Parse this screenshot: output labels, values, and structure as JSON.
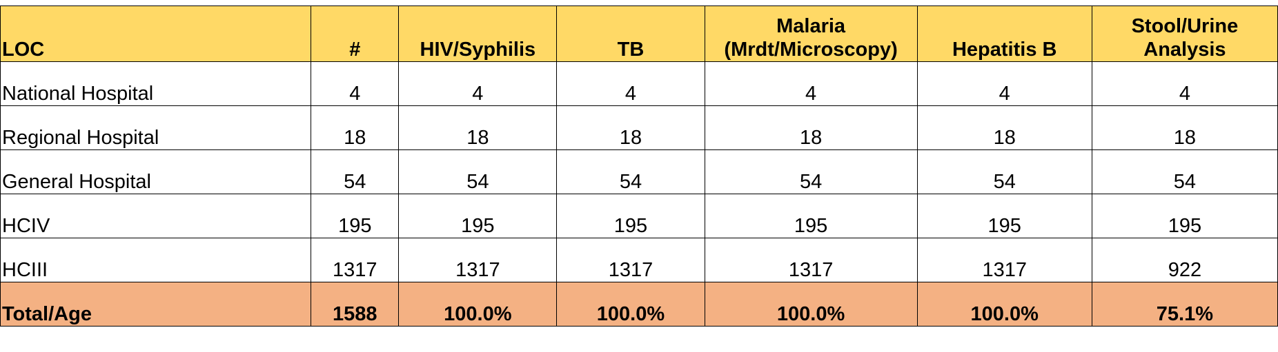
{
  "colors": {
    "header_bg": "#FFD966",
    "total_bg": "#F4B183",
    "body_bg": "#FFFFFF",
    "border": "#000000"
  },
  "table": {
    "headers": [
      {
        "lines": [
          "LOC"
        ]
      },
      {
        "lines": [
          "#"
        ]
      },
      {
        "lines": [
          "HIV/Syphilis"
        ]
      },
      {
        "lines": [
          "TB"
        ]
      },
      {
        "lines": [
          "Malaria",
          "(Mrdt/Microscopy)"
        ]
      },
      {
        "lines": [
          "Hepatitis B"
        ]
      },
      {
        "lines": [
          "Stool/Urine",
          "Analysis"
        ]
      }
    ],
    "rows": [
      [
        "National Hospital",
        "4",
        "4",
        "4",
        "4",
        "4",
        "4"
      ],
      [
        "Regional Hospital",
        "18",
        "18",
        "18",
        "18",
        "18",
        "18"
      ],
      [
        "General Hospital",
        "54",
        "54",
        "54",
        "54",
        "54",
        "54"
      ],
      [
        "HCIV",
        "195",
        "195",
        "195",
        "195",
        "195",
        "195"
      ],
      [
        "HCIII",
        "1317",
        "1317",
        "1317",
        "1317",
        "1317",
        "922"
      ]
    ],
    "total_row": [
      "Total/Age",
      "1588",
      "100.0%",
      "100.0%",
      "100.0%",
      "100.0%",
      "75.1%"
    ]
  }
}
